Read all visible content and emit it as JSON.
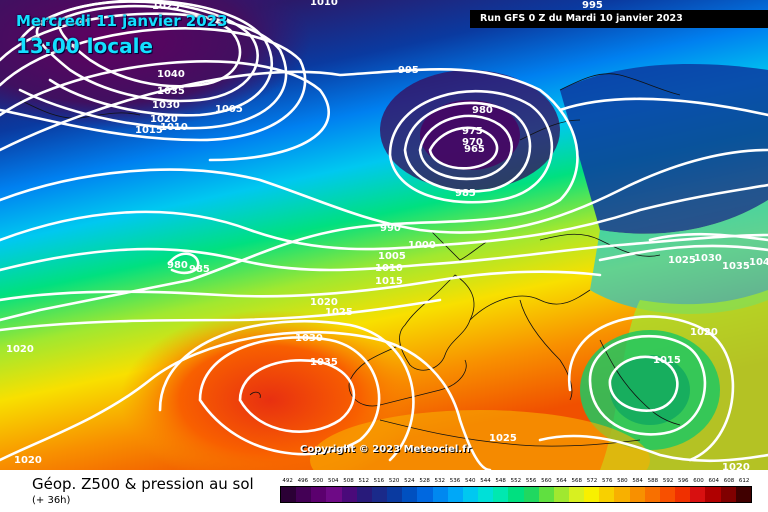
{
  "header": {
    "date": "Mercredi 11 janvier 2023",
    "time": "13:00 locale",
    "run": "Run GFS 0 Z du Mardi 10 janvier 2023"
  },
  "copyright": "Copyright © 2023 Meteociel.fr",
  "footer": {
    "title": "Géop. Z500 & pression au sol",
    "subtitle": "(+ 36h)"
  },
  "legend": {
    "labels": [
      "492",
      "496",
      "500",
      "504",
      "508",
      "512",
      "516",
      "520",
      "524",
      "528",
      "532",
      "536",
      "540",
      "544",
      "548",
      "552",
      "556",
      "560",
      "564",
      "568",
      "572",
      "576",
      "580",
      "584",
      "588",
      "592",
      "596",
      "600",
      "604",
      "608",
      "612"
    ],
    "colors": [
      "#2b0035",
      "#430055",
      "#5b006e",
      "#6e0a86",
      "#4a0a7a",
      "#281a7a",
      "#1a2a8a",
      "#0a3aa0",
      "#0050c0",
      "#0068e0",
      "#0088f0",
      "#00a8f8",
      "#00c8f0",
      "#00e0d8",
      "#00e8b0",
      "#00e080",
      "#20d860",
      "#60e040",
      "#a0e830",
      "#d8f020",
      "#f8f000",
      "#f8d000",
      "#f8b000",
      "#f89000",
      "#f87000",
      "#f85000",
      "#f03000",
      "#d81010",
      "#b00000",
      "#800000",
      "#400000"
    ]
  },
  "isobar_labels": [
    "1010",
    "1025",
    "995",
    "995",
    "1040",
    "1035",
    "1030",
    "1020",
    "1015",
    "1010",
    "1005",
    "980",
    "975",
    "970",
    "965",
    "985",
    "990",
    "1000",
    "1005",
    "1010",
    "1015",
    "980",
    "985",
    "1020",
    "1025",
    "1030",
    "1035",
    "1020",
    "1020",
    "1025",
    "1030",
    "1035",
    "104",
    "1020",
    "1015",
    "1025",
    "1020"
  ]
}
